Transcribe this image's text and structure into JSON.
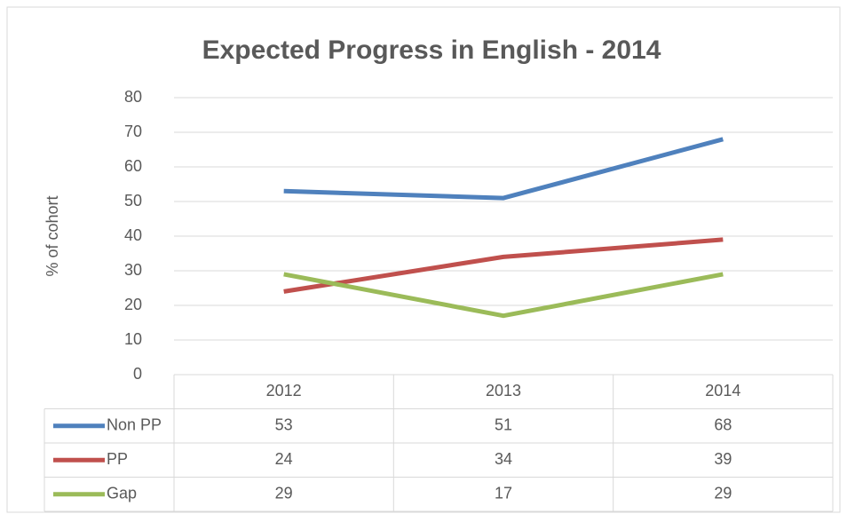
{
  "chart_data": {
    "type": "line",
    "title": "Expected Progress in English - 2014",
    "y_label": "% of cohort",
    "categories": [
      "2012",
      "2013",
      "2014"
    ],
    "series": [
      {
        "name": "Non PP",
        "color": "#4f81bd",
        "values": [
          53,
          51,
          68
        ]
      },
      {
        "name": "PP",
        "color": "#c0504d",
        "values": [
          24,
          34,
          39
        ]
      },
      {
        "name": "Gap",
        "color": "#9bbb59",
        "values": [
          29,
          17,
          29
        ]
      }
    ],
    "ylim": [
      0,
      80
    ],
    "yticks": [
      0,
      10,
      20,
      30,
      40,
      50,
      60,
      70,
      80
    ],
    "grid": true,
    "data_table": true
  }
}
